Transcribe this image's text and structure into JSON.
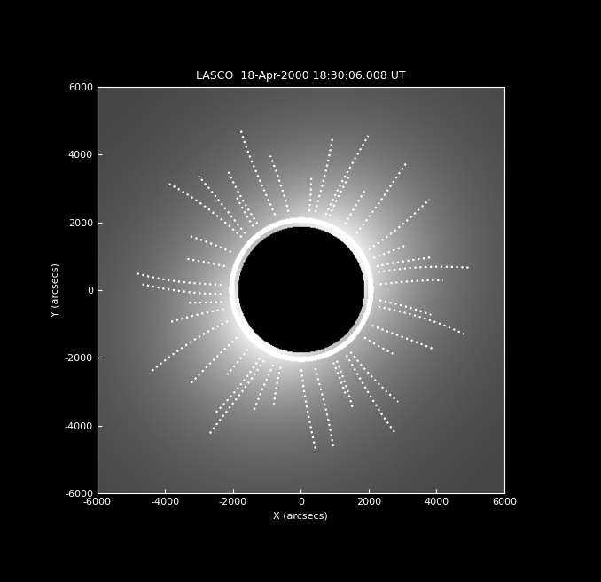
{
  "chart_data": {
    "type": "image",
    "title": "LASCO  18-Apr-2000 18:30:06.008 UT",
    "xlabel": "X (arcsecs)",
    "ylabel": "Y (arcsecs)",
    "xlim": [
      -6000,
      6000
    ],
    "ylim": [
      -6000,
      6000
    ],
    "xticks": [
      -6000,
      -4000,
      -2000,
      0,
      2000,
      4000,
      6000
    ],
    "yticks": [
      -6000,
      -4000,
      -2000,
      0,
      2000,
      4000,
      6000
    ]
  }
}
